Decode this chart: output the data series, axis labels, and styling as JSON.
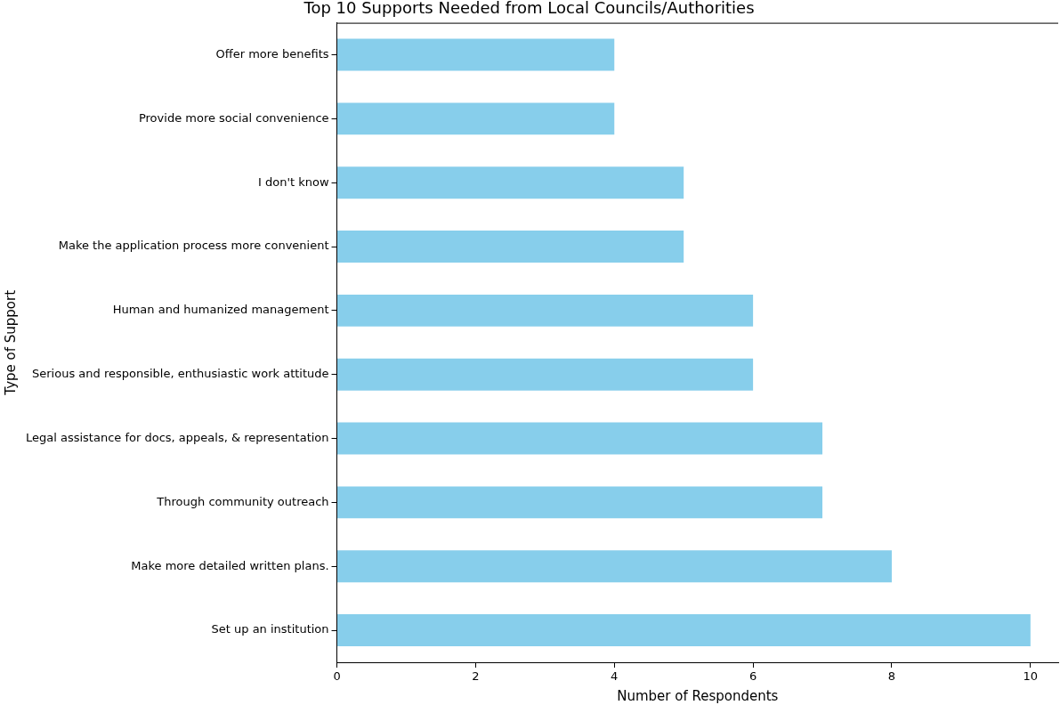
{
  "chart_data": {
    "type": "bar",
    "orientation": "horizontal",
    "title": "Top 10 Supports Needed from Local Councils/Authorities",
    "xlabel": "Number of Respondents",
    "ylabel": "Type of Support",
    "categories": [
      "Offer more benefits",
      "Provide more social convenience",
      "I don't know",
      "Make the application process more convenient",
      "Human and humanized management",
      "Serious and responsible, enthusiastic work attitude",
      "Legal assistance for docs, appeals, & representation",
      "Through community outreach",
      "Make more detailed written plans.",
      "Set up an institution"
    ],
    "values": [
      4,
      4,
      5,
      5,
      6,
      6,
      7,
      7,
      8,
      10
    ],
    "color": "#87ceeb",
    "xlim": [
      0,
      10.4
    ],
    "xticks": [
      0,
      2,
      4,
      6,
      8,
      10
    ],
    "grid": false,
    "legend": false
  }
}
